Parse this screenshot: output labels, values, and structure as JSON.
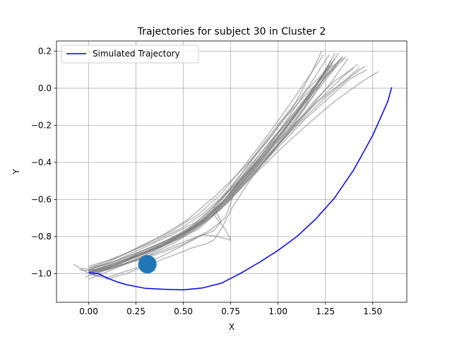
{
  "chart_data": {
    "type": "line",
    "title": "Trajectories for subject 30 in Cluster 2",
    "xlabel": "X",
    "ylabel": "Y",
    "xlim": [
      -0.17,
      1.68
    ],
    "ylim": [
      -1.155,
      0.255
    ],
    "xticks": [
      "0.00",
      "0.25",
      "0.50",
      "0.75",
      "1.00",
      "1.25",
      "1.50"
    ],
    "xtick_values": [
      0,
      0.25,
      0.5,
      0.75,
      1.0,
      1.25,
      1.5
    ],
    "yticks": [
      "−1.0",
      "−0.8",
      "−0.6",
      "−0.4",
      "−0.2",
      "0.0",
      "0.2"
    ],
    "ytick_values": [
      -1.0,
      -0.8,
      -0.6,
      -0.4,
      -0.2,
      0.0,
      0.2
    ],
    "grid": true,
    "legend": {
      "position": "top-left",
      "entries": [
        "Simulated Trajectory"
      ]
    },
    "series": [
      {
        "name": "Simulated Trajectory",
        "color": "#0000ff",
        "x": [
          0.0,
          0.05,
          0.1,
          0.15,
          0.2,
          0.3,
          0.4,
          0.5,
          0.6,
          0.7,
          0.8,
          0.9,
          1.0,
          1.1,
          1.2,
          1.3,
          1.4,
          1.5,
          1.55,
          1.58,
          1.6
        ],
        "y": [
          -0.995,
          -1.0,
          -1.025,
          -1.045,
          -1.06,
          -1.08,
          -1.085,
          -1.088,
          -1.078,
          -1.052,
          -1.0,
          -0.94,
          -0.875,
          -0.8,
          -0.705,
          -0.59,
          -0.44,
          -0.255,
          -0.14,
          -0.07,
          0.005
        ]
      }
    ],
    "background_trajectories": {
      "color": "#808080",
      "opacity": 0.55,
      "paths": [
        {
          "x": [
            0.0,
            0.1,
            0.25,
            0.4,
            0.55,
            0.7,
            0.85,
            1.0,
            1.12,
            1.25,
            1.32
          ],
          "y": [
            -0.98,
            -0.95,
            -0.89,
            -0.83,
            -0.75,
            -0.62,
            -0.44,
            -0.26,
            -0.1,
            0.08,
            0.19
          ]
        },
        {
          "x": [
            0.0,
            0.12,
            0.28,
            0.45,
            0.6,
            0.72,
            0.85,
            0.98,
            1.1,
            1.2,
            1.27
          ],
          "y": [
            -0.99,
            -0.96,
            -0.9,
            -0.82,
            -0.73,
            -0.6,
            -0.45,
            -0.27,
            -0.09,
            0.07,
            0.18
          ]
        },
        {
          "x": [
            0.0,
            0.1,
            0.22,
            0.38,
            0.52,
            0.66,
            0.8,
            0.95,
            1.08,
            1.18,
            1.23
          ],
          "y": [
            -0.98,
            -0.94,
            -0.88,
            -0.8,
            -0.71,
            -0.59,
            -0.45,
            -0.28,
            -0.1,
            0.09,
            0.2
          ]
        },
        {
          "x": [
            0.0,
            0.15,
            0.3,
            0.45,
            0.6,
            0.72,
            0.85,
            1.0,
            1.15,
            1.28,
            1.37
          ],
          "y": [
            -0.99,
            -0.95,
            -0.88,
            -0.8,
            -0.71,
            -0.6,
            -0.46,
            -0.3,
            -0.13,
            0.03,
            0.16
          ]
        },
        {
          "x": [
            0.0,
            0.1,
            0.25,
            0.42,
            0.58,
            0.7,
            0.82,
            0.96,
            1.1,
            1.24,
            1.34
          ],
          "y": [
            -1.0,
            -0.97,
            -0.91,
            -0.84,
            -0.76,
            -0.65,
            -0.5,
            -0.32,
            -0.13,
            0.05,
            0.17
          ]
        },
        {
          "x": [
            0.0,
            0.12,
            0.27,
            0.42,
            0.57,
            0.7,
            0.84,
            0.98,
            1.12,
            1.24,
            1.3
          ],
          "y": [
            -0.97,
            -0.94,
            -0.87,
            -0.8,
            -0.72,
            -0.6,
            -0.44,
            -0.26,
            -0.09,
            0.07,
            0.19
          ]
        },
        {
          "x": [
            0.0,
            0.1,
            0.2,
            0.35,
            0.5,
            0.62,
            0.75,
            0.9,
            1.05,
            1.18,
            1.28
          ],
          "y": [
            -0.99,
            -0.96,
            -0.92,
            -0.86,
            -0.78,
            -0.68,
            -0.55,
            -0.38,
            -0.2,
            -0.02,
            0.15
          ]
        },
        {
          "x": [
            0.0,
            0.15,
            0.3,
            0.48,
            0.62,
            0.72,
            0.8,
            0.92,
            1.05,
            1.2,
            1.35,
            1.43
          ],
          "y": [
            -0.98,
            -0.93,
            -0.87,
            -0.79,
            -0.7,
            -0.6,
            -0.5,
            -0.37,
            -0.23,
            -0.08,
            0.04,
            0.11
          ]
        },
        {
          "x": [
            0.0,
            0.12,
            0.3,
            0.48,
            0.62,
            0.74,
            0.86,
            1.0,
            1.15,
            1.3,
            1.45,
            1.53
          ],
          "y": [
            -0.99,
            -0.95,
            -0.89,
            -0.81,
            -0.72,
            -0.61,
            -0.48,
            -0.34,
            -0.2,
            -0.07,
            0.04,
            0.09
          ]
        },
        {
          "x": [
            0.0,
            0.1,
            0.25,
            0.4,
            0.55,
            0.68,
            0.8,
            0.95,
            1.1,
            1.25,
            1.38,
            1.46
          ],
          "y": [
            -1.0,
            -0.96,
            -0.9,
            -0.84,
            -0.76,
            -0.66,
            -0.52,
            -0.36,
            -0.2,
            -0.05,
            0.06,
            0.12
          ]
        },
        {
          "x": [
            -0.05,
            0.05,
            0.18,
            0.32,
            0.45,
            0.58,
            0.68,
            0.78,
            0.9,
            1.02,
            1.15,
            1.27,
            1.34
          ],
          "y": [
            -0.98,
            -0.99,
            -0.95,
            -0.89,
            -0.82,
            -0.73,
            -0.63,
            -0.5,
            -0.34,
            -0.18,
            -0.03,
            0.09,
            0.17
          ]
        },
        {
          "x": [
            -0.08,
            0.0,
            0.1,
            0.25,
            0.4,
            0.55,
            0.65,
            0.72,
            0.75,
            0.78,
            0.85,
            0.95,
            1.08,
            1.2,
            1.3
          ],
          "y": [
            -0.95,
            -1.0,
            -1.02,
            -0.97,
            -0.9,
            -0.82,
            -0.76,
            -0.7,
            -0.62,
            -0.52,
            -0.42,
            -0.3,
            -0.15,
            0.02,
            0.16
          ]
        },
        {
          "x": [
            0.0,
            0.1,
            0.2,
            0.32,
            0.45,
            0.55,
            0.62,
            0.66,
            0.7,
            0.76,
            0.85,
            0.96,
            1.08,
            1.2,
            1.29
          ],
          "y": [
            -1.0,
            -1.03,
            -1.0,
            -0.95,
            -0.9,
            -0.86,
            -0.84,
            -0.82,
            -0.76,
            -0.64,
            -0.5,
            -0.35,
            -0.19,
            -0.02,
            0.14
          ]
        },
        {
          "x": [
            0.0,
            0.12,
            0.25,
            0.38,
            0.5,
            0.6,
            0.68,
            0.75,
            0.72,
            0.66,
            0.72,
            0.82,
            0.95,
            1.08,
            1.2,
            1.28
          ],
          "y": [
            -0.98,
            -0.97,
            -0.93,
            -0.88,
            -0.83,
            -0.79,
            -0.8,
            -0.82,
            -0.76,
            -0.68,
            -0.6,
            -0.48,
            -0.33,
            -0.16,
            0.02,
            0.15
          ]
        },
        {
          "x": [
            0.0,
            0.1,
            0.22,
            0.35,
            0.48,
            0.58,
            0.66,
            0.7,
            0.66,
            0.72,
            0.8,
            0.9,
            1.02,
            1.14,
            1.25
          ],
          "y": [
            -0.99,
            -0.98,
            -0.94,
            -0.9,
            -0.85,
            -0.8,
            -0.77,
            -0.72,
            -0.64,
            -0.57,
            -0.5,
            -0.4,
            -0.26,
            -0.1,
            0.1
          ]
        },
        {
          "x": [
            0.0,
            0.1,
            0.2,
            0.3,
            0.42,
            0.54,
            0.64,
            0.72,
            0.78,
            0.86,
            0.96,
            1.08,
            1.2,
            1.31
          ],
          "y": [
            -0.99,
            -0.97,
            -0.92,
            -0.87,
            -0.82,
            -0.76,
            -0.7,
            -0.63,
            -0.56,
            -0.47,
            -0.36,
            -0.2,
            -0.02,
            0.12
          ]
        },
        {
          "x": [
            0.0,
            0.08,
            0.18,
            0.3,
            0.44,
            0.58,
            0.7,
            0.82,
            0.94,
            1.06,
            1.16,
            1.24
          ],
          "y": [
            -0.97,
            -0.94,
            -0.9,
            -0.84,
            -0.77,
            -0.68,
            -0.57,
            -0.42,
            -0.26,
            -0.09,
            0.06,
            0.18
          ]
        },
        {
          "x": [
            -0.02,
            0.08,
            0.2,
            0.34,
            0.48,
            0.6,
            0.72,
            0.84,
            0.97,
            1.1,
            1.22,
            1.32
          ],
          "y": [
            -1.02,
            -0.98,
            -0.93,
            -0.87,
            -0.8,
            -0.72,
            -0.61,
            -0.47,
            -0.31,
            -0.14,
            0.02,
            0.14
          ]
        },
        {
          "x": [
            0.0,
            0.12,
            0.26,
            0.4,
            0.54,
            0.66,
            0.78,
            0.92,
            1.06,
            1.2,
            1.33,
            1.42
          ],
          "y": [
            -0.99,
            -0.95,
            -0.9,
            -0.84,
            -0.76,
            -0.67,
            -0.55,
            -0.4,
            -0.24,
            -0.08,
            0.05,
            0.13
          ]
        },
        {
          "x": [
            0.02,
            0.12,
            0.25,
            0.38,
            0.5,
            0.62,
            0.74,
            0.86,
            1.0,
            1.14,
            1.28,
            1.38,
            1.47
          ],
          "y": [
            -1.01,
            -0.97,
            -0.91,
            -0.85,
            -0.78,
            -0.7,
            -0.6,
            -0.47,
            -0.32,
            -0.17,
            -0.04,
            0.05,
            0.1
          ]
        },
        {
          "x": [
            0.0,
            0.1,
            0.24,
            0.38,
            0.52,
            0.64,
            0.74,
            0.84,
            0.95,
            1.07,
            1.19,
            1.3,
            1.4
          ],
          "y": [
            -1.03,
            -0.99,
            -0.93,
            -0.86,
            -0.78,
            -0.7,
            -0.61,
            -0.5,
            -0.37,
            -0.22,
            -0.07,
            0.04,
            0.11
          ]
        },
        {
          "x": [
            0.0,
            0.1,
            0.2,
            0.34,
            0.48,
            0.6,
            0.7,
            0.8,
            0.9,
            1.02,
            1.14,
            1.26,
            1.36
          ],
          "y": [
            -0.96,
            -0.93,
            -0.89,
            -0.83,
            -0.76,
            -0.68,
            -0.59,
            -0.47,
            -0.33,
            -0.17,
            -0.02,
            0.1,
            0.17
          ]
        },
        {
          "x": [
            0.0,
            0.1,
            0.22,
            0.36,
            0.5,
            0.6,
            0.7,
            0.8,
            0.92,
            1.05,
            1.17,
            1.27
          ],
          "y": [
            -1.0,
            -0.97,
            -0.92,
            -0.86,
            -0.79,
            -0.72,
            -0.62,
            -0.5,
            -0.35,
            -0.18,
            -0.02,
            0.12
          ]
        },
        {
          "x": [
            -0.04,
            0.06,
            0.18,
            0.32,
            0.46,
            0.58,
            0.68,
            0.78,
            0.9,
            1.02,
            1.14,
            1.25,
            1.35
          ],
          "y": [
            -0.97,
            -0.99,
            -0.95,
            -0.9,
            -0.83,
            -0.75,
            -0.66,
            -0.55,
            -0.41,
            -0.25,
            -0.08,
            0.06,
            0.16
          ]
        }
      ]
    },
    "marker": {
      "x": 0.31,
      "y": -0.95,
      "color": "#1f77b4"
    }
  }
}
